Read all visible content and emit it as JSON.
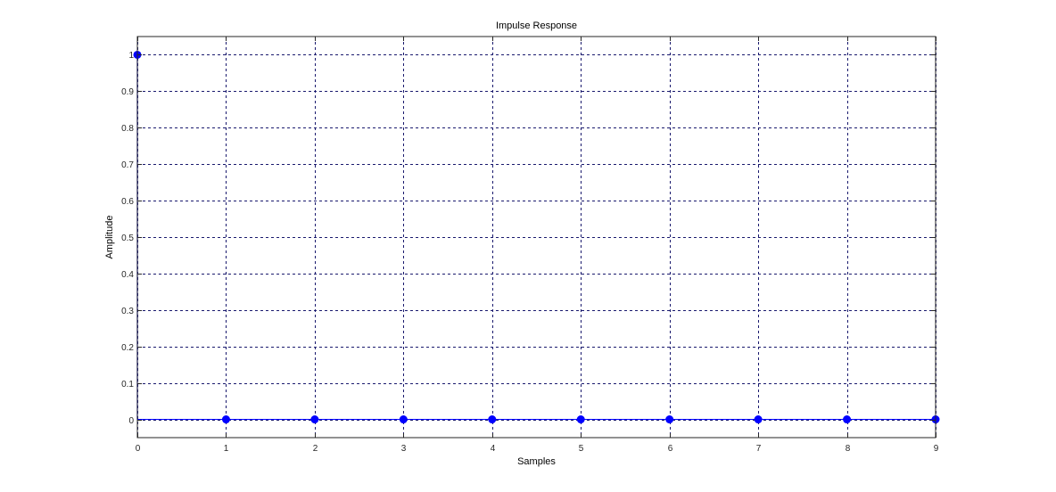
{
  "chart_data": {
    "type": "stem",
    "title": "Impulse Response",
    "xlabel": "Samples",
    "ylabel": "Amplitude",
    "xlim": [
      0,
      9
    ],
    "ylim": [
      -0.05,
      1.05
    ],
    "grid": true,
    "x_ticks": [
      0,
      1,
      2,
      3,
      4,
      5,
      6,
      7,
      8,
      9
    ],
    "x_tick_labels": [
      "0",
      "1",
      "2",
      "3",
      "4",
      "5",
      "6",
      "7",
      "8",
      "9"
    ],
    "y_ticks": [
      0,
      0.1,
      0.2,
      0.3,
      0.4,
      0.5,
      0.6,
      0.7,
      0.8,
      0.9,
      1
    ],
    "y_tick_labels": [
      "0",
      "0.1",
      "0.2",
      "0.3",
      "0.4",
      "0.5",
      "0.6",
      "0.7",
      "0.8",
      "0.9",
      "1"
    ],
    "series": [
      {
        "x": [
          0,
          1,
          2,
          3,
          4,
          5,
          6,
          7,
          8,
          9
        ],
        "values": [
          1,
          0,
          0,
          0,
          0,
          0,
          0,
          0,
          0,
          0
        ],
        "color": "#0000ff"
      }
    ],
    "colors": {
      "axes": "#262626",
      "grid": "#1a1a6e",
      "baseline": "#0000ff"
    }
  }
}
